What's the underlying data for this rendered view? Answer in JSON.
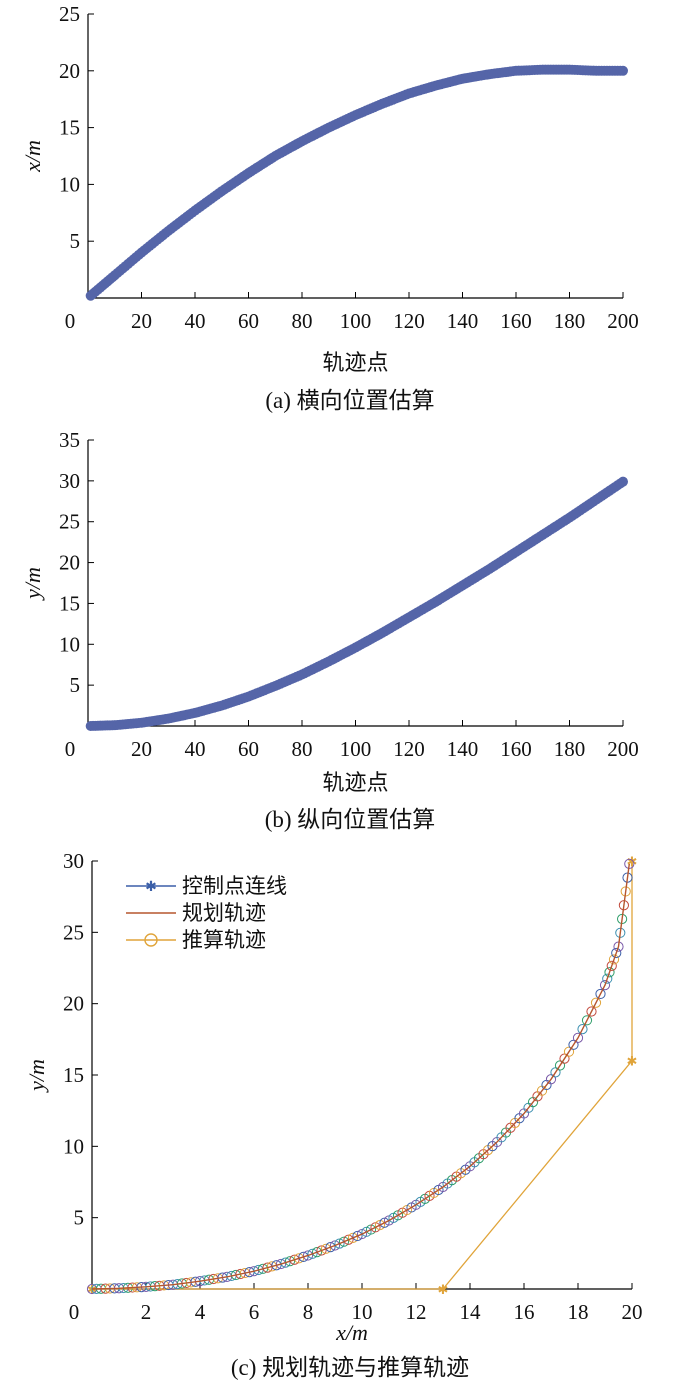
{
  "chart_data": [
    {
      "id": "a",
      "type": "scatter",
      "caption": "(a)  横向位置估算",
      "xlabel": "轨迹点",
      "ylabel": "x/m",
      "xlim": [
        0,
        200
      ],
      "ylim": [
        0,
        25
      ],
      "xticks": [
        0,
        20,
        40,
        60,
        80,
        100,
        120,
        140,
        160,
        180,
        200
      ],
      "yticks": [
        5,
        10,
        15,
        20,
        25
      ],
      "color": "#5565a8",
      "series": [
        {
          "x": [
            1,
            10,
            20,
            30,
            40,
            50,
            60,
            70,
            80,
            90,
            100,
            110,
            120,
            130,
            140,
            150,
            160,
            170,
            180,
            190,
            200
          ],
          "y": [
            0.2,
            2.0,
            4.0,
            5.9,
            7.7,
            9.4,
            11.0,
            12.5,
            13.8,
            15.0,
            16.1,
            17.1,
            18.0,
            18.7,
            19.3,
            19.7,
            20.0,
            20.1,
            20.1,
            20.0,
            20.0
          ]
        }
      ]
    },
    {
      "id": "b",
      "type": "scatter",
      "caption": "(b)  纵向位置估算",
      "xlabel": "轨迹点",
      "ylabel": "y/m",
      "xlim": [
        0,
        200
      ],
      "ylim": [
        0,
        35
      ],
      "xticks": [
        0,
        20,
        40,
        60,
        80,
        100,
        120,
        140,
        160,
        180,
        200
      ],
      "yticks": [
        5,
        10,
        15,
        20,
        25,
        30,
        35
      ],
      "color": "#5565a8",
      "series": [
        {
          "x": [
            1,
            10,
            20,
            30,
            40,
            50,
            60,
            70,
            80,
            90,
            100,
            110,
            120,
            130,
            140,
            150,
            160,
            170,
            180,
            190,
            200
          ],
          "y": [
            0,
            0.1,
            0.4,
            0.9,
            1.6,
            2.5,
            3.6,
            4.9,
            6.3,
            7.9,
            9.6,
            11.4,
            13.3,
            15.2,
            17.2,
            19.2,
            21.3,
            23.4,
            25.5,
            27.7,
            29.9
          ]
        }
      ]
    },
    {
      "id": "c",
      "type": "line",
      "caption": "(c)  规划轨迹与推算轨迹",
      "xlabel": "x/m",
      "ylabel": "y/m",
      "xlim": [
        0,
        20
      ],
      "ylim": [
        0,
        30
      ],
      "xticks": [
        0,
        2,
        4,
        6,
        8,
        10,
        12,
        14,
        16,
        18,
        20
      ],
      "yticks": [
        5,
        10,
        15,
        20,
        25,
        30
      ],
      "legend": "top-left",
      "series": [
        {
          "name": "控制点连线",
          "color": "#3b5fa8",
          "marker": "star",
          "x": [
            20,
            20,
            13,
            0
          ],
          "y": [
            30,
            16,
            0,
            0
          ]
        },
        {
          "name": "规划轨迹",
          "color": "#b5562e",
          "marker": "none",
          "x": [
            0,
            1,
            2,
            3,
            4,
            5,
            6,
            7,
            8,
            9,
            10,
            11,
            12,
            13,
            14,
            15,
            16,
            17,
            18,
            19,
            19.5,
            19.9
          ],
          "y": [
            0,
            0.05,
            0.15,
            0.3,
            0.55,
            0.85,
            1.25,
            1.75,
            2.35,
            3.05,
            3.85,
            4.8,
            5.9,
            7.15,
            8.6,
            10.3,
            12.3,
            14.7,
            17.6,
            21.3,
            24.0,
            29.8
          ]
        },
        {
          "name": "推算轨迹",
          "color": "#e0a43a",
          "marker": "circle",
          "x": [
            0,
            1,
            2,
            3,
            4,
            5,
            6,
            7,
            8,
            9,
            10,
            11,
            12,
            13,
            14,
            15,
            16,
            17,
            18,
            19,
            19.5,
            19.9
          ],
          "y": [
            0,
            0.05,
            0.15,
            0.3,
            0.55,
            0.85,
            1.25,
            1.75,
            2.35,
            3.05,
            3.85,
            4.8,
            5.9,
            7.15,
            8.6,
            10.3,
            12.3,
            14.7,
            17.6,
            21.3,
            24.0,
            29.8
          ]
        }
      ],
      "control_line_color": "#e0a43a"
    }
  ]
}
